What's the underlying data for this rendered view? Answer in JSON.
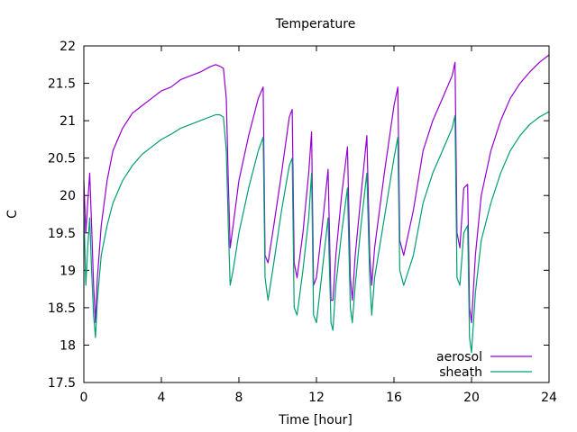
{
  "chart_data": {
    "type": "line",
    "title": "Temperature",
    "xlabel": "Time [hour]",
    "ylabel": "C",
    "xlim": [
      0,
      24
    ],
    "ylim": [
      17.5,
      22
    ],
    "xticks": [
      0,
      4,
      8,
      12,
      16,
      20,
      24
    ],
    "yticks": [
      17.5,
      18,
      18.5,
      19,
      19.5,
      20,
      20.5,
      21,
      21.5,
      22
    ],
    "grid": false,
    "legend_position": "bottom-right",
    "series": [
      {
        "name": "aerosol",
        "color": "#9400d3",
        "x": [
          0,
          0.1,
          0.2,
          0.3,
          0.4,
          0.5,
          0.6,
          0.7,
          0.9,
          1.2,
          1.5,
          2.0,
          2.5,
          3.0,
          3.5,
          4.0,
          4.5,
          5.0,
          5.5,
          6.0,
          6.5,
          6.8,
          7.0,
          7.2,
          7.35,
          7.45,
          7.55,
          7.7,
          8.0,
          8.5,
          9.0,
          9.25,
          9.35,
          9.5,
          9.8,
          10.2,
          10.6,
          10.75,
          10.85,
          11.0,
          11.3,
          11.6,
          11.75,
          11.85,
          12.0,
          12.3,
          12.6,
          12.75,
          12.85,
          13.0,
          13.3,
          13.6,
          13.75,
          13.85,
          14.0,
          14.3,
          14.6,
          14.75,
          14.85,
          15.0,
          15.5,
          16.0,
          16.2,
          16.3,
          16.5,
          17.0,
          17.5,
          18.0,
          18.5,
          19.0,
          19.15,
          19.25,
          19.4,
          19.6,
          19.8,
          19.9,
          20.0,
          20.2,
          20.5,
          21.0,
          21.5,
          22.0,
          22.5,
          23.0,
          23.5,
          24.0
        ],
        "y": [
          20.2,
          19.5,
          19.9,
          20.3,
          19.6,
          18.8,
          18.3,
          18.9,
          19.6,
          20.2,
          20.6,
          20.9,
          21.1,
          21.2,
          21.3,
          21.4,
          21.45,
          21.55,
          21.6,
          21.65,
          21.72,
          21.75,
          21.73,
          21.7,
          21.3,
          20.2,
          19.3,
          19.6,
          20.2,
          20.8,
          21.3,
          21.45,
          19.2,
          19.1,
          19.6,
          20.3,
          21.05,
          21.15,
          19.1,
          18.9,
          19.5,
          20.3,
          20.85,
          18.8,
          18.9,
          19.6,
          20.35,
          18.6,
          18.6,
          19.2,
          20.0,
          20.65,
          18.9,
          18.6,
          19.2,
          20.0,
          20.8,
          19.2,
          18.8,
          19.3,
          20.3,
          21.2,
          21.45,
          19.4,
          19.2,
          19.8,
          20.6,
          21.0,
          21.3,
          21.6,
          21.78,
          19.5,
          19.3,
          20.1,
          20.15,
          18.5,
          18.3,
          19.2,
          20.0,
          20.6,
          21.0,
          21.3,
          21.5,
          21.65,
          21.78,
          21.88
        ]
      },
      {
        "name": "sheath",
        "color": "#009e73",
        "x": [
          0,
          0.1,
          0.2,
          0.3,
          0.4,
          0.5,
          0.6,
          0.7,
          0.9,
          1.2,
          1.5,
          2.0,
          2.5,
          3.0,
          3.5,
          4.0,
          4.5,
          5.0,
          5.5,
          6.0,
          6.5,
          6.8,
          7.0,
          7.2,
          7.35,
          7.45,
          7.55,
          7.7,
          8.0,
          8.5,
          9.0,
          9.25,
          9.35,
          9.5,
          9.8,
          10.2,
          10.6,
          10.75,
          10.85,
          11.0,
          11.3,
          11.6,
          11.75,
          11.85,
          12.0,
          12.3,
          12.6,
          12.75,
          12.85,
          13.0,
          13.3,
          13.6,
          13.75,
          13.85,
          14.0,
          14.3,
          14.6,
          14.75,
          14.85,
          15.0,
          15.5,
          16.0,
          16.2,
          16.3,
          16.5,
          17.0,
          17.5,
          18.0,
          18.5,
          19.0,
          19.15,
          19.25,
          19.4,
          19.6,
          19.8,
          19.9,
          20.0,
          20.2,
          20.5,
          21.0,
          21.5,
          22.0,
          22.5,
          23.0,
          23.5,
          24.0
        ],
        "y": [
          19.8,
          18.8,
          19.3,
          19.7,
          19.0,
          18.4,
          18.1,
          18.6,
          19.2,
          19.6,
          19.9,
          20.2,
          20.4,
          20.55,
          20.65,
          20.75,
          20.82,
          20.9,
          20.95,
          21.0,
          21.05,
          21.08,
          21.08,
          21.05,
          20.6,
          19.6,
          18.8,
          19.0,
          19.5,
          20.1,
          20.6,
          20.78,
          18.9,
          18.6,
          19.1,
          19.8,
          20.4,
          20.5,
          18.5,
          18.4,
          19.0,
          19.7,
          20.3,
          18.4,
          18.3,
          19.0,
          19.7,
          18.3,
          18.2,
          18.8,
          19.5,
          20.1,
          18.5,
          18.3,
          18.8,
          19.6,
          20.3,
          18.9,
          18.4,
          18.9,
          19.7,
          20.5,
          20.78,
          19.0,
          18.8,
          19.2,
          19.9,
          20.3,
          20.6,
          20.9,
          21.07,
          18.9,
          18.8,
          19.5,
          19.6,
          18.1,
          17.9,
          18.7,
          19.4,
          19.9,
          20.3,
          20.6,
          20.8,
          20.95,
          21.05,
          21.12
        ]
      }
    ]
  }
}
